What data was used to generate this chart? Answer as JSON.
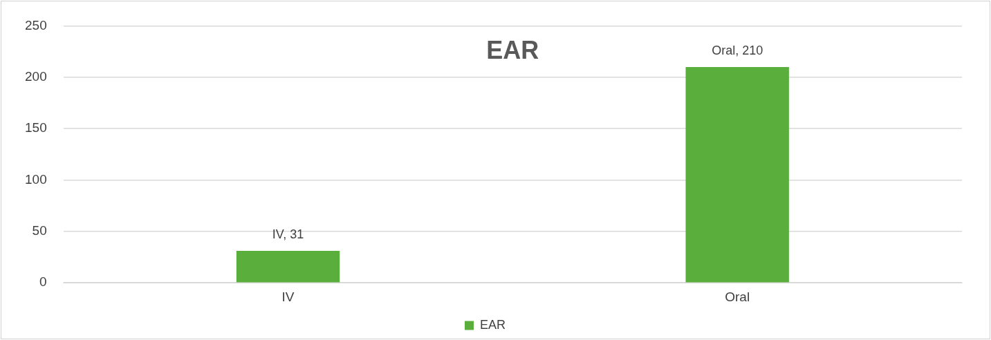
{
  "chart_data": {
    "type": "bar",
    "title": "EAR",
    "categories": [
      "IV",
      "Oral"
    ],
    "series": [
      {
        "name": "EAR",
        "color": "#5aaf3c",
        "values": [
          31,
          210
        ],
        "value_labels": [
          "IV, 31",
          "Oral, 210"
        ]
      }
    ],
    "ylim": [
      0,
      250
    ],
    "yticks": [
      0,
      50,
      100,
      150,
      200,
      250
    ],
    "grid": "y",
    "legend": "bottom"
  }
}
